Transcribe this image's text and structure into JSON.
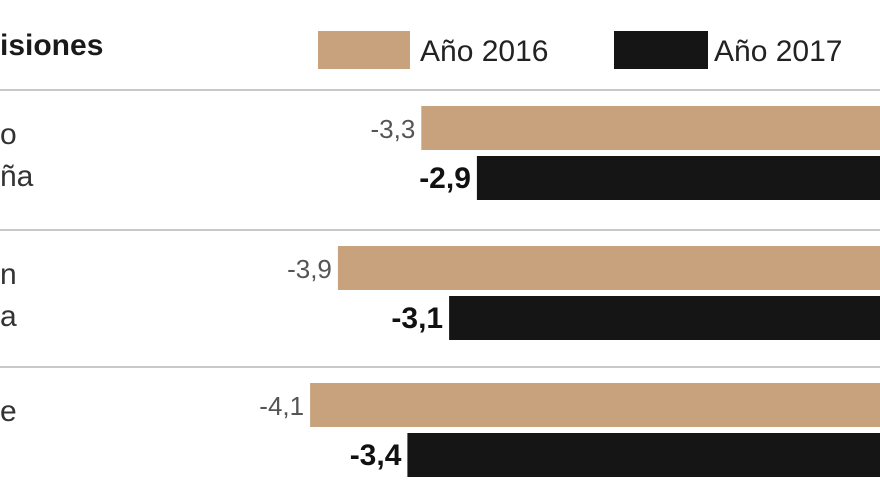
{
  "chart_data": {
    "type": "bar",
    "orientation": "horizontal",
    "title": "isiones",
    "categories": [
      "o\nña",
      "n\na",
      "e"
    ],
    "series": [
      {
        "name": "Año 2016",
        "color": "#c8a27c",
        "values": [
          -3.3,
          -3.9,
          -4.1
        ],
        "labels": [
          "-3,3",
          "-3,9",
          "-4,1"
        ]
      },
      {
        "name": "Año 2017",
        "color": "#151515",
        "values": [
          -2.9,
          -3.1,
          -3.4
        ],
        "labels": [
          "-2,9",
          "-3,1",
          "-3,4"
        ]
      }
    ],
    "xlim": [
      -4.8,
      0
    ],
    "grid": false,
    "legend_position": "top"
  }
}
